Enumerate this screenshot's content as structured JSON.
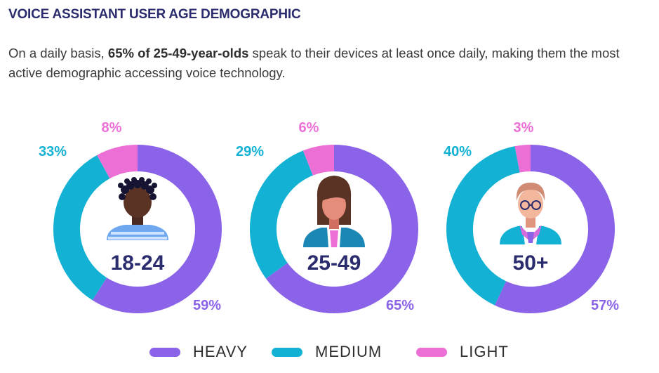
{
  "title": "VOICE ASSISTANT USER AGE DEMOGRAPHIC",
  "subtitle": {
    "prefix": "On a daily basis, ",
    "highlight": "65% of 25-49-year-olds",
    "suffix": " speak to their devices at least once daily, making them the most active demographic accessing voice technology."
  },
  "colors": {
    "heavy": "#8a63e8",
    "medium": "#13b1d3",
    "light": "#ec6fd6",
    "center_text": "#2b2c6e"
  },
  "legend": [
    {
      "key": "heavy",
      "label": "HEAVY"
    },
    {
      "key": "medium",
      "label": "MEDIUM"
    },
    {
      "key": "light",
      "label": "LIGHT"
    }
  ],
  "chart_data": [
    {
      "type": "pie",
      "center_label": "18-24",
      "avatar": "young-person-avatar-icon",
      "slices": [
        {
          "key": "heavy",
          "label": "HEAVY",
          "value": 59,
          "text": "59%"
        },
        {
          "key": "medium",
          "label": "MEDIUM",
          "value": 33,
          "text": "33%"
        },
        {
          "key": "light",
          "label": "LIGHT",
          "value": 8,
          "text": "8%"
        }
      ]
    },
    {
      "type": "pie",
      "center_label": "25-49",
      "avatar": "woman-avatar-icon",
      "slices": [
        {
          "key": "heavy",
          "label": "HEAVY",
          "value": 65,
          "text": "65%"
        },
        {
          "key": "medium",
          "label": "MEDIUM",
          "value": 29,
          "text": "29%"
        },
        {
          "key": "light",
          "label": "LIGHT",
          "value": 6,
          "text": "6%"
        }
      ]
    },
    {
      "type": "pie",
      "center_label": "50+",
      "avatar": "older-man-avatar-icon",
      "slices": [
        {
          "key": "heavy",
          "label": "HEAVY",
          "value": 57,
          "text": "57%"
        },
        {
          "key": "medium",
          "label": "MEDIUM",
          "value": 40,
          "text": "40%"
        },
        {
          "key": "light",
          "label": "LIGHT",
          "value": 3,
          "text": "3%"
        }
      ]
    }
  ]
}
